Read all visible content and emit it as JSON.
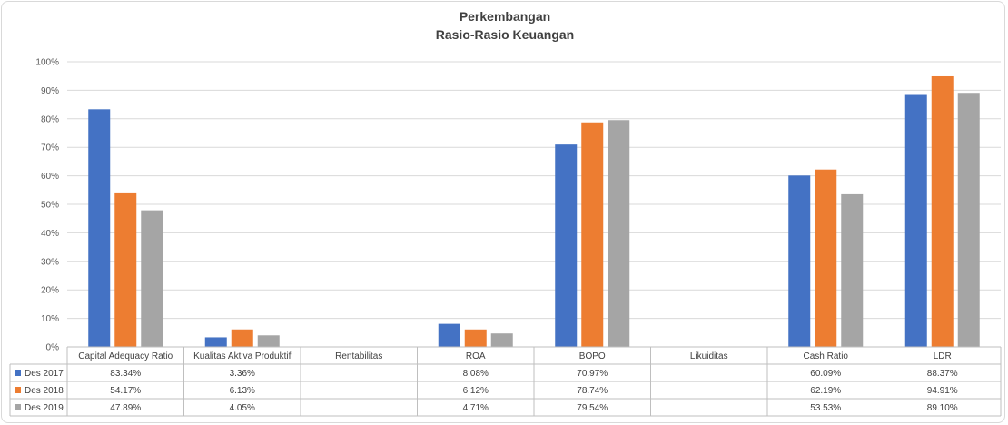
{
  "chart_data": {
    "type": "bar",
    "title": [
      "Perkembangan",
      "Rasio-Rasio Keuangan"
    ],
    "categories": [
      "Capital Adequacy Ratio",
      "Kualitas Aktiva Produktif",
      "Rentabilitas",
      "ROA",
      "BOPO",
      "Likuiditas",
      "Cash Ratio",
      "LDR"
    ],
    "series": [
      {
        "name": "Des 2017",
        "color": "#4472c4",
        "values": [
          83.34,
          3.36,
          null,
          8.08,
          70.97,
          null,
          60.09,
          88.37
        ],
        "labels": [
          "83.34%",
          "3.36%",
          "",
          "8.08%",
          "70.97%",
          "",
          "60.09%",
          "88.37%"
        ]
      },
      {
        "name": "Des 2018",
        "color": "#ed7d31",
        "values": [
          54.17,
          6.13,
          null,
          6.12,
          78.74,
          null,
          62.19,
          94.91
        ],
        "labels": [
          "54.17%",
          "6.13%",
          "",
          "6.12%",
          "78.74%",
          "",
          "62.19%",
          "94.91%"
        ]
      },
      {
        "name": "Des 2019",
        "color": "#a5a5a5",
        "values": [
          47.89,
          4.05,
          null,
          4.71,
          79.54,
          null,
          53.53,
          89.1
        ],
        "labels": [
          "47.89%",
          "4.05%",
          "",
          "4.71%",
          "79.54%",
          "",
          "53.53%",
          "89.10%"
        ]
      }
    ],
    "ylim": [
      0,
      100
    ],
    "yticks": [
      "0%",
      "10%",
      "20%",
      "30%",
      "40%",
      "50%",
      "60%",
      "70%",
      "80%",
      "90%",
      "100%"
    ],
    "xlabel": "",
    "ylabel": "",
    "grid": true,
    "legend": "data-table"
  }
}
